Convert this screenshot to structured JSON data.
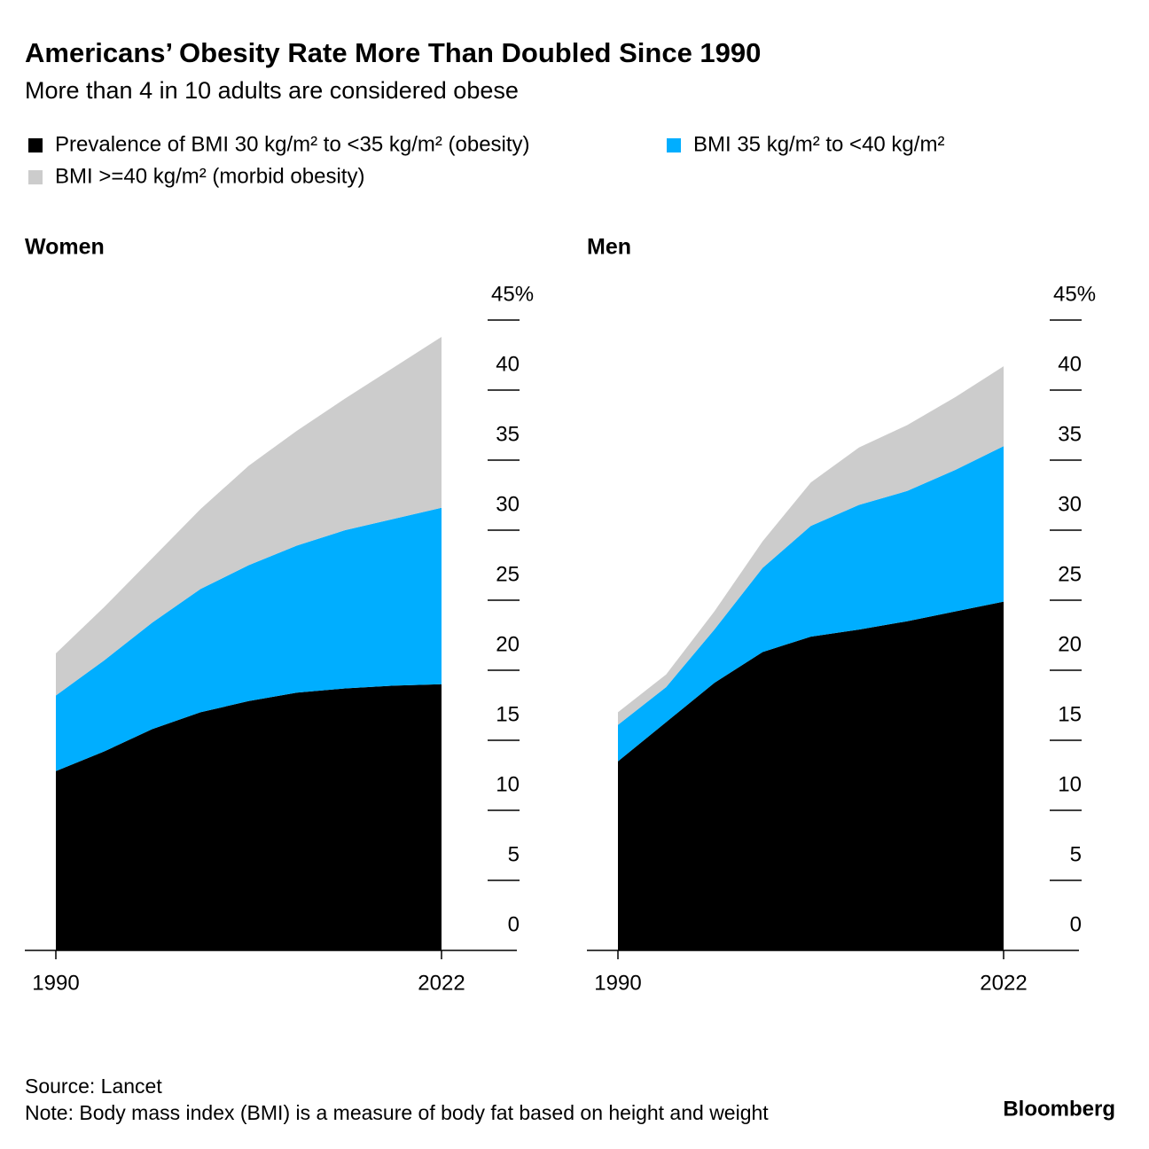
{
  "title": "Americans’ Obesity Rate More Than Doubled Since 1990",
  "subtitle": "More than 4 in 10 adults are considered obese",
  "source": "Source: Lancet",
  "note": "Note: Body mass index (BMI) is a measure of body fat based on height and weight",
  "brand": "Bloomberg",
  "chart_data": [
    {
      "type": "area",
      "stacked": true,
      "title": "Women",
      "x": [
        1990,
        1994,
        1998,
        2002,
        2006,
        2010,
        2014,
        2018,
        2022
      ],
      "xlim": [
        1990,
        2022
      ],
      "xticks": [
        1990,
        2022
      ],
      "ylim": [
        0,
        45
      ],
      "yticks": [
        0,
        5,
        10,
        15,
        20,
        25,
        30,
        35,
        40,
        {
          "value": 45,
          "label": "45%"
        }
      ],
      "series": [
        {
          "name": "Prevalence of BMI 30 kg/m² to <35 kg/m² (obesity)",
          "color": "#000000",
          "values": [
            12.8,
            14.2,
            15.8,
            17.0,
            17.8,
            18.4,
            18.7,
            18.9,
            19.0
          ]
        },
        {
          "name": "BMI 35 kg/m² to <40 kg/m²",
          "color": "#00aeff",
          "values": [
            5.4,
            6.5,
            7.6,
            8.8,
            9.7,
            10.5,
            11.3,
            11.9,
            12.6
          ]
        },
        {
          "name": "BMI >=40 kg/m² (morbid obesity)",
          "color": "#cccccc",
          "values": [
            3.0,
            3.8,
            4.6,
            5.7,
            7.1,
            8.2,
            9.4,
            10.8,
            12.2
          ]
        }
      ]
    },
    {
      "type": "area",
      "stacked": true,
      "title": "Men",
      "x": [
        1990,
        1994,
        1998,
        2002,
        2006,
        2010,
        2014,
        2018,
        2022
      ],
      "xlim": [
        1990,
        2022
      ],
      "xticks": [
        1990,
        2022
      ],
      "ylim": [
        0,
        45
      ],
      "yticks": [
        0,
        5,
        10,
        15,
        20,
        25,
        30,
        35,
        40,
        {
          "value": 45,
          "label": "45%"
        }
      ],
      "series": [
        {
          "color": "#000000",
          "values": [
            13.5,
            16.3,
            19.1,
            21.3,
            22.4,
            22.9,
            23.5,
            24.2,
            24.9
          ]
        },
        {
          "color": "#00aeff",
          "values": [
            2.6,
            2.5,
            3.8,
            6.0,
            7.9,
            8.9,
            9.3,
            10.1,
            11.1
          ]
        },
        {
          "color": "#cccccc",
          "values": [
            0.9,
            0.9,
            1.3,
            1.9,
            3.1,
            4.1,
            4.7,
            5.2,
            5.7
          ]
        }
      ]
    }
  ]
}
